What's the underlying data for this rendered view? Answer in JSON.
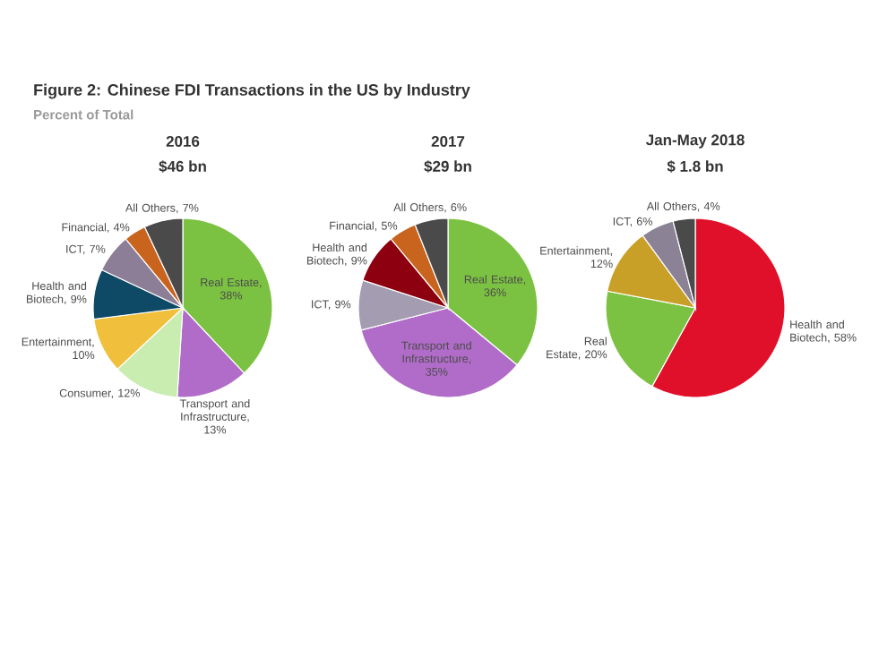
{
  "chart_data": [
    {
      "type": "pie",
      "title": "2016",
      "subtitle": "$46 bn",
      "annotations": [
        "Figure 2: Chinese FDI Transactions in the US by Industry",
        "Percent of Total"
      ],
      "categories": [
        "Real Estate, 38%",
        "Transport and Infrastructure, 13%",
        "Consumer, 12%",
        "Entertainment, 10%",
        "Health and Biotech, 9%",
        "ICT, 7%",
        "Financial, 4%",
        "All Others, 7%"
      ],
      "values": [
        38,
        13,
        12,
        10,
        9,
        7,
        4,
        7
      ],
      "colors": [
        "#7cc242",
        "#b06cc8",
        "#c9ecb0",
        "#f0c03c",
        "#0e4a66",
        "#8c7e96",
        "#c8641e",
        "#4a4a4a"
      ]
    },
    {
      "type": "pie",
      "title": "2017",
      "subtitle": "$29 bn",
      "categories": [
        "Real Estate, 36%",
        "Transport and Infrastructure, 35%",
        "ICT, 9%",
        "Health and Biotech, 9%",
        "Financial, 5%",
        "All Others, 6%"
      ],
      "values": [
        36,
        35,
        9,
        9,
        5,
        6
      ],
      "colors": [
        "#7cc242",
        "#b06cc8",
        "#a49cb0",
        "#8c0010",
        "#c8641e",
        "#4a4a4a"
      ]
    },
    {
      "type": "pie",
      "title": "Jan-May 2018",
      "subtitle": "$ 1.8 bn",
      "categories": [
        "Health and Biotech, 58%",
        "Real Estate, 20%",
        "Entertainment, 12%",
        "ICT, 6%",
        "All Others, 4%"
      ],
      "values": [
        58,
        20,
        12,
        6,
        4
      ],
      "colors": [
        "#e0102a",
        "#7cc242",
        "#c8a028",
        "#8c8296",
        "#4a4a4a"
      ]
    }
  ]
}
